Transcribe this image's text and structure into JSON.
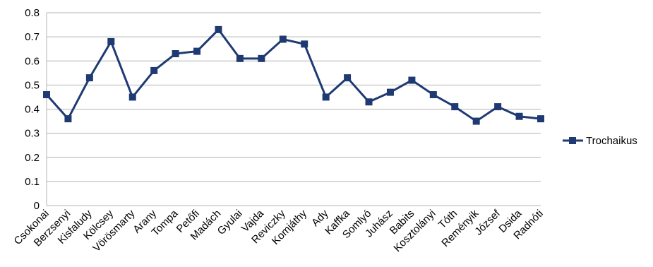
{
  "chart_data": {
    "type": "line",
    "title": "",
    "xlabel": "",
    "ylabel": "",
    "ylim": [
      0,
      0.8
    ],
    "yticks": [
      "0",
      "0.1",
      "0.2",
      "0.3",
      "0.4",
      "0.5",
      "0.6",
      "0.7",
      "0.8"
    ],
    "grid": "horizontal",
    "legend_position": "right",
    "categories": [
      "Csokonai",
      "Berzsenyi",
      "Kisfaludy",
      "Kölcsey",
      "Vörösmarty",
      "Arany",
      "Tompa",
      "Petőfi",
      "Madách",
      "Gyulai",
      "Vajda",
      "Reviczky",
      "Komjáthy",
      "Ady",
      "Kaffka",
      "Somlyó",
      "Juhász",
      "Babits",
      "Kosztolányi",
      "Tóth",
      "Reményik",
      "József",
      "Dsida",
      "Radnóti"
    ],
    "series": [
      {
        "name": "Trochaikus",
        "color": "#1f3a73",
        "values": [
          0.46,
          0.36,
          0.53,
          0.68,
          0.45,
          0.56,
          0.63,
          0.64,
          0.73,
          0.61,
          0.61,
          0.69,
          0.67,
          0.45,
          0.53,
          0.43,
          0.47,
          0.52,
          0.46,
          0.41,
          0.35,
          0.41,
          0.37,
          0.36
        ]
      }
    ]
  }
}
